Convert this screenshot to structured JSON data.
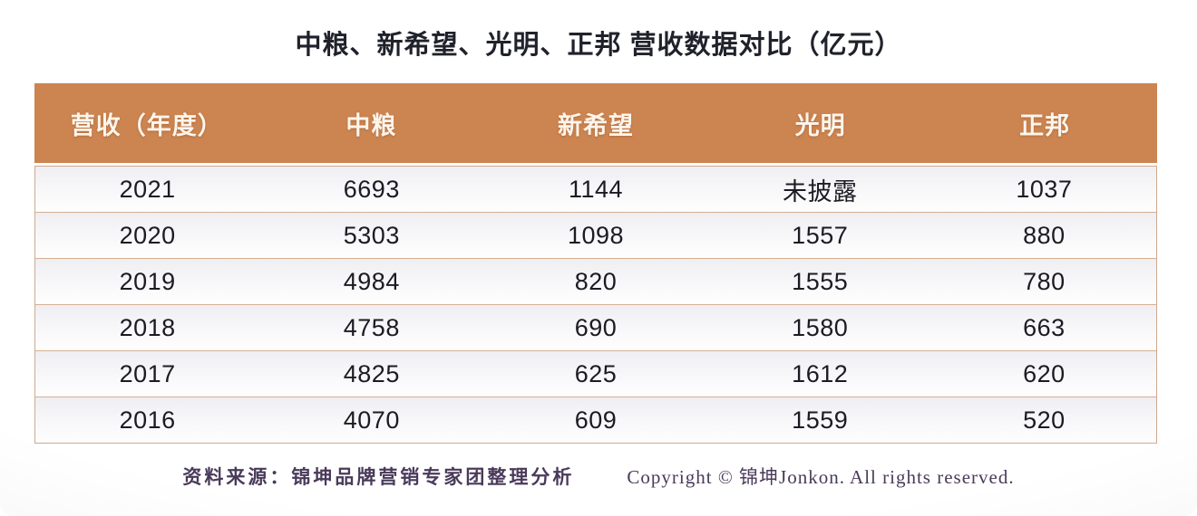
{
  "title": "中粮、新希望、光明、正邦 营收数据对比（亿元）",
  "table": {
    "columns": [
      "营收（年度）",
      "中粮",
      "新希望",
      "光明",
      "正邦"
    ],
    "rows": [
      [
        "2021",
        "6693",
        "1144",
        "未披露",
        "1037"
      ],
      [
        "2020",
        "5303",
        "1098",
        "1557",
        "880"
      ],
      [
        "2019",
        "4984",
        "820",
        "1555",
        "780"
      ],
      [
        "2018",
        "4758",
        "690",
        "1580",
        "663"
      ],
      [
        "2017",
        "4825",
        "625",
        "1612",
        "620"
      ],
      [
        "2016",
        "4070",
        "609",
        "1559",
        "520"
      ]
    ]
  },
  "footer": {
    "source": "资料来源：锦坤品牌营销专家团整理分析",
    "copyright": "Copyright © 锦坤Jonkon. All rights reserved."
  },
  "colors": {
    "header_bg": "#cc8450",
    "header_text": "#fdf5ec",
    "table_border": "#cfa98e",
    "body_text": "#1b1b23",
    "title_text": "#20222b",
    "footer_text": "#4a3a5a"
  },
  "chart_data": {
    "type": "table",
    "title": "中粮、新希望、光明、正邦 营收数据对比（亿元）",
    "unit": "亿元",
    "categories": [
      "2021",
      "2020",
      "2019",
      "2018",
      "2017",
      "2016"
    ],
    "series": [
      {
        "name": "中粮",
        "values": [
          6693,
          5303,
          4984,
          4758,
          4825,
          4070
        ]
      },
      {
        "name": "新希望",
        "values": [
          1144,
          1098,
          820,
          690,
          625,
          609
        ]
      },
      {
        "name": "光明",
        "values": [
          null,
          1557,
          1555,
          1580,
          1612,
          1559
        ]
      },
      {
        "name": "正邦",
        "values": [
          1037,
          880,
          780,
          663,
          620,
          520
        ]
      }
    ],
    "annotations": [
      "光明 2021 shown as 未披露 (not disclosed)"
    ]
  }
}
